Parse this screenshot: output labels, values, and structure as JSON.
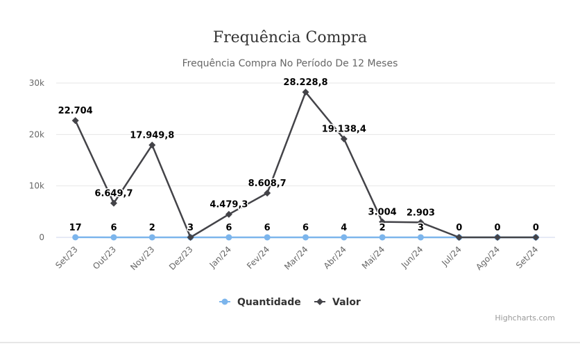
{
  "chart_data": {
    "type": "line",
    "title": "Frequência Compra",
    "subtitle": "Frequência Compra No Período De 12 Meses",
    "categories": [
      "Set/23",
      "Out/23",
      "Nov/23",
      "Dez/23",
      "Jan/24",
      "Fev/24",
      "Mar/24",
      "Abr/24",
      "Mai/24",
      "Jun/24",
      "Jul/24",
      "Ago/24",
      "Set/24"
    ],
    "ylim": [
      0,
      30000
    ],
    "yticks": [
      0,
      10000,
      20000,
      30000
    ],
    "ytick_labels": [
      "0",
      "10k",
      "20k",
      "30k"
    ],
    "grid": true,
    "legend_position": "bottom-center",
    "series": [
      {
        "name": "Quantidade",
        "color": "#7cb5ec",
        "marker": "circle",
        "values": [
          17,
          6,
          2,
          3,
          6,
          6,
          6,
          4,
          2,
          3,
          0,
          0,
          0
        ],
        "labels": [
          "17",
          "6",
          "2",
          "3",
          "6",
          "6",
          "6",
          "4",
          "2",
          "3",
          "0",
          "0",
          "0"
        ]
      },
      {
        "name": "Valor",
        "color": "#434348",
        "marker": "diamond",
        "values": [
          22704,
          6649.7,
          17949.8,
          0,
          4479.3,
          8608.7,
          28228.8,
          19138.4,
          3004,
          2903,
          0,
          0,
          0
        ],
        "labels": [
          "22.704",
          "6.649,7",
          "17.949,8",
          "",
          "4.479,3",
          "8.608,7",
          "28.228,8",
          "19.138,4",
          "3.004",
          "2.903",
          "",
          "",
          ""
        ]
      }
    ]
  },
  "credits": "Highcharts.com"
}
